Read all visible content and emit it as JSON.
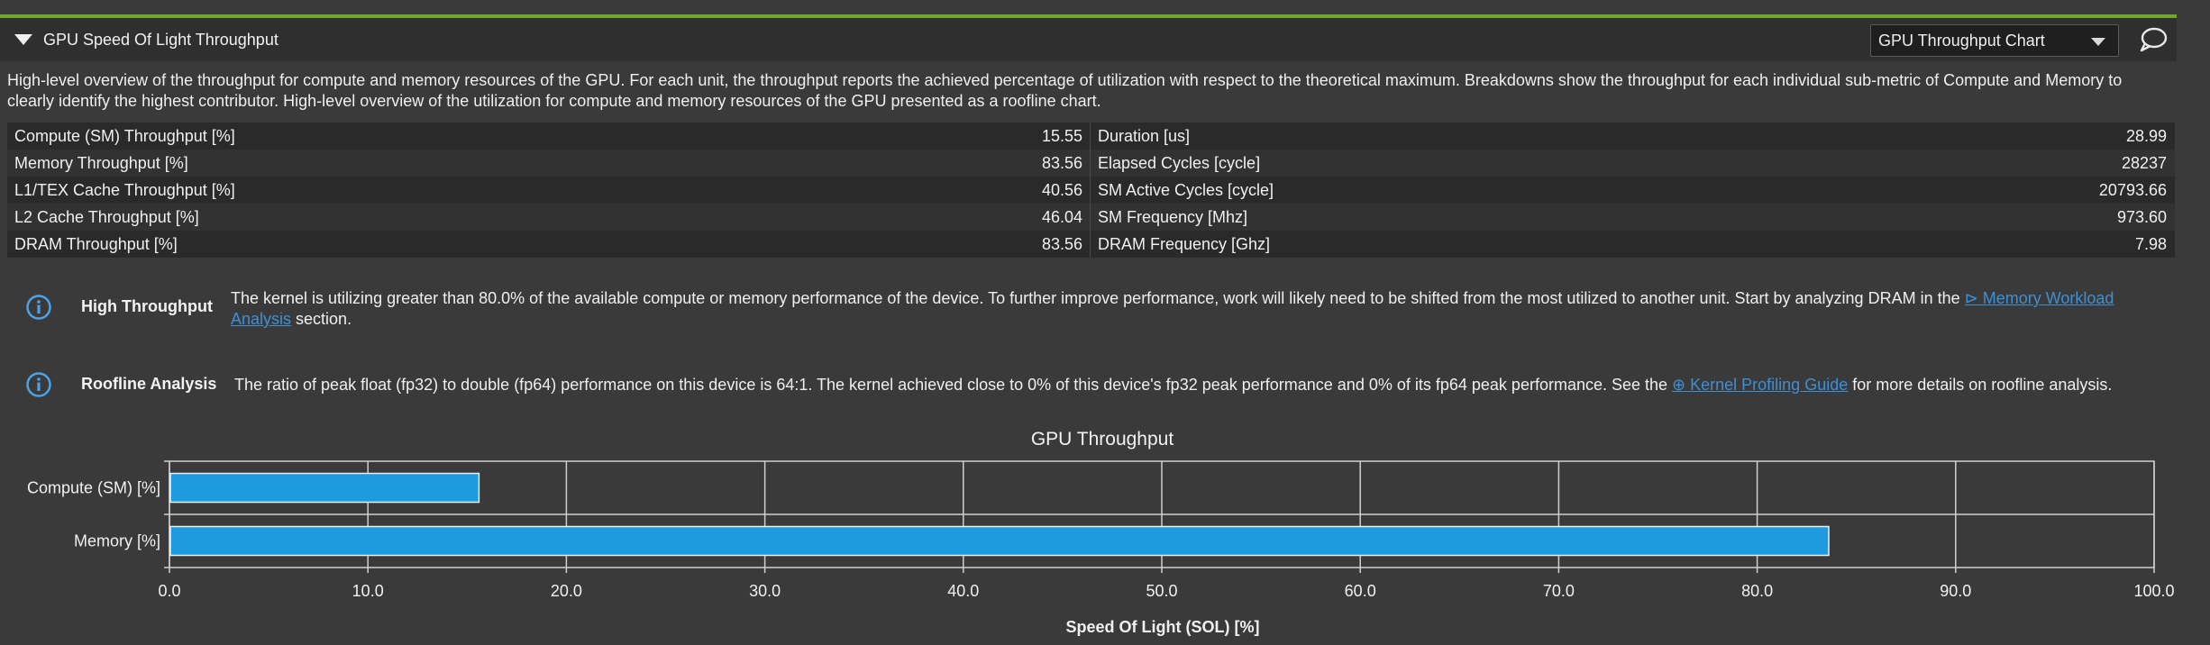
{
  "section": {
    "title": "GPU Speed Of Light Throughput",
    "dropdown_value": "GPU Throughput Chart",
    "description": "High-level overview of the throughput for compute and memory resources of the GPU. For each unit, the throughput reports the achieved percentage of utilization with respect to the theoretical maximum. Breakdowns show the throughput for each individual sub-metric of Compute and Memory to clearly identify the highest contributor. High-level overview of the utilization for compute and memory resources of the GPU presented as a roofline chart."
  },
  "metrics": [
    {
      "left_label": "Compute (SM) Throughput [%]",
      "left_value": "15.55",
      "right_label": "Duration [us]",
      "right_value": "28.99"
    },
    {
      "left_label": "Memory Throughput [%]",
      "left_value": "83.56",
      "right_label": "Elapsed Cycles [cycle]",
      "right_value": "28237"
    },
    {
      "left_label": "L1/TEX Cache Throughput [%]",
      "left_value": "40.56",
      "right_label": "SM Active Cycles [cycle]",
      "right_value": "20793.66"
    },
    {
      "left_label": "L2 Cache Throughput [%]",
      "left_value": "46.04",
      "right_label": "SM Frequency [Mhz]",
      "right_value": "973.60"
    },
    {
      "left_label": "DRAM Throughput [%]",
      "left_value": "83.56",
      "right_label": "DRAM Frequency [Ghz]",
      "right_value": "7.98"
    }
  ],
  "rules": {
    "high_throughput": {
      "name": "High Throughput",
      "text_before": "The kernel is utilizing greater than 80.0% of the available compute or memory performance of the device. To further improve performance, work will likely need to be shifted from the most utilized to another unit. Start by analyzing DRAM in the ",
      "link_line1": "Memory Workload",
      "link_line2": "Analysis",
      "text_after": " section."
    },
    "roofline": {
      "name": "Roofline Analysis",
      "text_before": "The ratio of peak float (fp32) to double (fp64) performance on this device is 64:1. The kernel achieved close to 0% of this device's fp32 peak performance and 0% of its fp64 peak performance. See the ",
      "link": "Kernel Profiling Guide",
      "text_after": " for more details on roofline analysis."
    }
  },
  "colors": {
    "accent_green": "#74a52b",
    "bar_blue": "#1e9be0",
    "link_blue": "#3d8fd6"
  },
  "chart_data": {
    "type": "bar",
    "orientation": "horizontal",
    "title": "GPU Throughput",
    "categories": [
      "Compute (SM) [%]",
      "Memory [%]"
    ],
    "values": [
      15.55,
      83.56
    ],
    "xlabel": "Speed Of Light (SOL) [%]",
    "ylabel": "",
    "xlim": [
      0,
      100
    ],
    "xticks": [
      "0.0",
      "10.0",
      "20.0",
      "30.0",
      "40.0",
      "50.0",
      "60.0",
      "70.0",
      "80.0",
      "90.0",
      "100.0"
    ],
    "grid": true
  }
}
